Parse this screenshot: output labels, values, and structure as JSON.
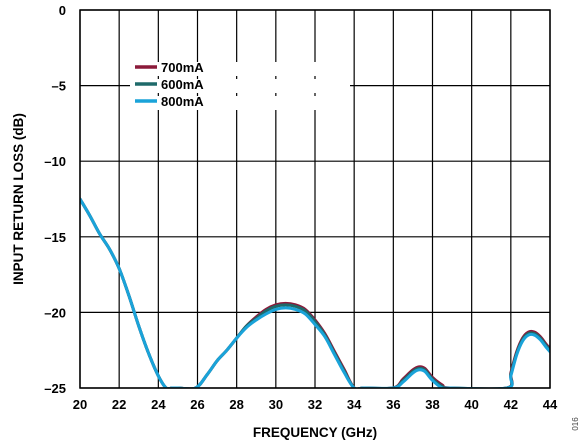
{
  "figure_id": "016",
  "chart_data": {
    "type": "line",
    "title": "",
    "xlabel": "FREQUENCY (GHz)",
    "ylabel": "INPUT RETURN LOSS (dB)",
    "xlim": [
      20,
      44
    ],
    "ylim": [
      -25,
      0
    ],
    "xticks": [
      20,
      22,
      24,
      26,
      28,
      30,
      32,
      34,
      36,
      38,
      40,
      42,
      44
    ],
    "yticks": [
      0,
      -5,
      -10,
      -15,
      -20,
      -25
    ],
    "xtick_labels": [
      "20",
      "22",
      "24",
      "26",
      "28",
      "30",
      "32",
      "34",
      "36",
      "38",
      "40",
      "42",
      "44"
    ],
    "ytick_labels": [
      "0",
      "–5",
      "–10",
      "–15",
      "–20",
      "–25"
    ],
    "grid": true,
    "legend_position": "top-left",
    "series": [
      {
        "name": "700mA",
        "color": "#8b1a3a",
        "x": [
          20,
          20.5,
          21,
          21.5,
          22,
          22.5,
          23,
          23.5,
          24,
          24.4,
          24.7,
          25.0,
          25.9,
          26.5,
          27,
          27.5,
          28,
          28.5,
          29,
          29.5,
          30,
          30.5,
          31,
          31.5,
          32,
          32.5,
          33,
          33.5,
          34,
          34.5,
          36.0,
          36.5,
          37,
          37.3,
          37.6,
          38,
          38.5,
          38.9,
          41.8,
          42,
          42.3,
          42.6,
          42.9,
          43.2,
          43.5,
          43.8,
          44
        ],
        "y": [
          -12.5,
          -13.6,
          -14.8,
          -15.8,
          -17.1,
          -18.9,
          -20.9,
          -22.7,
          -24.2,
          -25.0,
          -25.0,
          -25.0,
          -25.0,
          -24.1,
          -23.2,
          -22.5,
          -21.7,
          -20.9,
          -20.3,
          -19.8,
          -19.5,
          -19.4,
          -19.5,
          -19.8,
          -20.5,
          -21.4,
          -22.6,
          -23.8,
          -25.0,
          -25.0,
          -25.0,
          -24.4,
          -23.8,
          -23.6,
          -23.7,
          -24.3,
          -24.8,
          -25.0,
          -25.0,
          -24.0,
          -22.6,
          -21.7,
          -21.3,
          -21.3,
          -21.6,
          -22.1,
          -22.4
        ]
      },
      {
        "name": "600mA",
        "color": "#1e6a6a",
        "x": [
          20,
          20.5,
          21,
          21.5,
          22,
          22.5,
          23,
          23.5,
          24,
          24.4,
          24.7,
          25.0,
          25.9,
          26.5,
          27,
          27.5,
          28,
          28.5,
          29,
          29.5,
          30,
          30.5,
          31,
          31.5,
          32,
          32.5,
          33,
          33.5,
          34,
          34.5,
          36.0,
          36.5,
          37,
          37.3,
          37.6,
          38,
          38.5,
          38.9,
          41.8,
          42,
          42.3,
          42.6,
          42.9,
          43.2,
          43.5,
          43.8,
          44
        ],
        "y": [
          -12.5,
          -13.6,
          -14.8,
          -15.8,
          -17.1,
          -18.9,
          -20.9,
          -22.7,
          -24.2,
          -25.0,
          -25.0,
          -25.0,
          -25.0,
          -24.1,
          -23.2,
          -22.5,
          -21.7,
          -20.9,
          -20.4,
          -19.9,
          -19.6,
          -19.5,
          -19.6,
          -19.9,
          -20.6,
          -21.5,
          -22.7,
          -23.9,
          -25.0,
          -25.0,
          -25.0,
          -24.5,
          -23.9,
          -23.7,
          -23.8,
          -24.4,
          -24.9,
          -25.0,
          -25.0,
          -24.1,
          -22.7,
          -21.8,
          -21.4,
          -21.4,
          -21.7,
          -22.2,
          -22.5
        ]
      },
      {
        "name": "800mA",
        "color": "#1aa3d9",
        "x": [
          20,
          20.5,
          21,
          21.5,
          22,
          22.5,
          23,
          23.5,
          24,
          24.4,
          24.7,
          25.0,
          25.9,
          26.5,
          27,
          27.5,
          28,
          28.5,
          29,
          29.5,
          30,
          30.5,
          31,
          31.5,
          32,
          32.5,
          33,
          33.5,
          34,
          34.5,
          36.0,
          36.5,
          37,
          37.3,
          37.6,
          38,
          38.5,
          38.9,
          41.8,
          42,
          42.3,
          42.6,
          42.9,
          43.2,
          43.5,
          43.8,
          44
        ],
        "y": [
          -12.5,
          -13.6,
          -14.8,
          -15.8,
          -17.1,
          -18.9,
          -20.9,
          -22.7,
          -24.2,
          -25.0,
          -25.0,
          -25.0,
          -25.0,
          -24.1,
          -23.2,
          -22.5,
          -21.7,
          -21.0,
          -20.5,
          -20.1,
          -19.8,
          -19.7,
          -19.8,
          -20.1,
          -20.8,
          -21.6,
          -22.8,
          -24.0,
          -25.0,
          -25.0,
          -25.0,
          -24.6,
          -24.0,
          -23.8,
          -23.9,
          -24.5,
          -25.0,
          -25.0,
          -25.0,
          -24.2,
          -22.8,
          -21.9,
          -21.5,
          -21.5,
          -21.8,
          -22.3,
          -22.6
        ]
      }
    ]
  }
}
